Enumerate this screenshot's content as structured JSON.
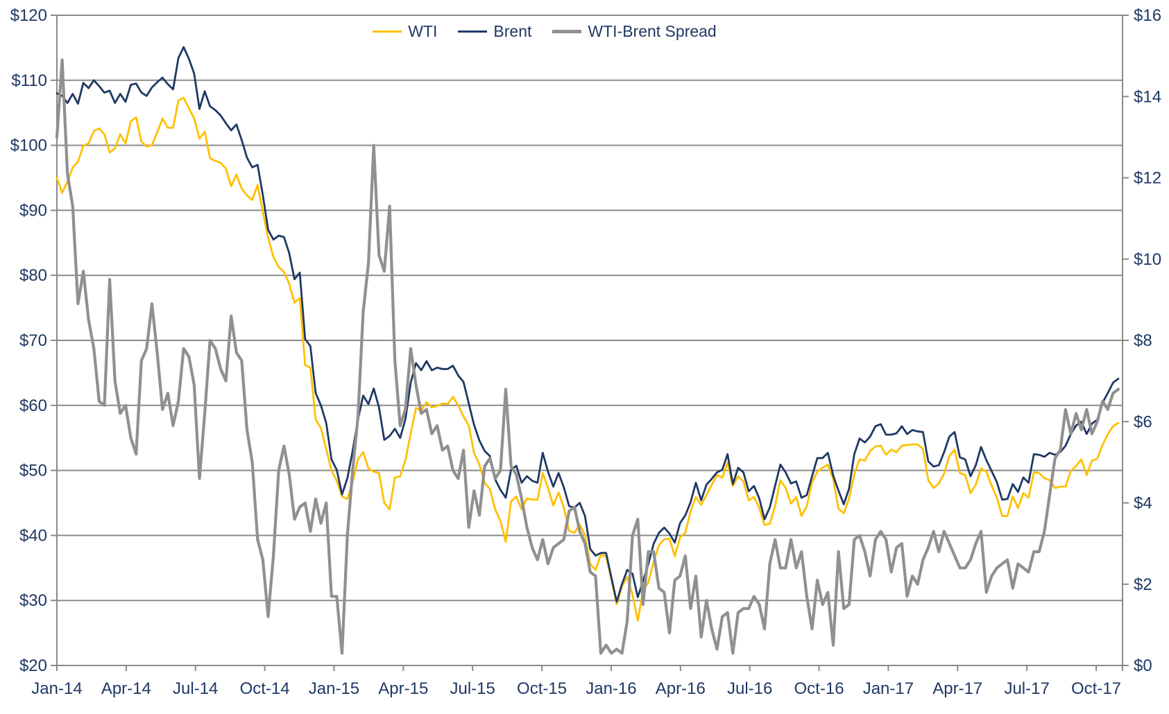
{
  "chart_data": {
    "type": "line",
    "sampling": "weekly, Jan-2014 through mid-Nov-2017",
    "grid": true,
    "legend_position": "top-center",
    "colors": {
      "labels": "#1F3864",
      "grid": "#8A8A8A",
      "axis": "#8A8A8A",
      "background": "#FFFFFF"
    },
    "x_axis": {
      "tick_labels": [
        "Jan-14",
        "Apr-14",
        "Jul-14",
        "Oct-14",
        "Jan-15",
        "Apr-15",
        "Jul-15",
        "Oct-15",
        "Jan-16",
        "Apr-16",
        "Jul-16",
        "Oct-16",
        "Jan-17",
        "Apr-17",
        "Jul-17",
        "Oct-17"
      ]
    },
    "y_axis_left": {
      "min": 20,
      "max": 120,
      "step": 10,
      "tick_values": [
        20,
        30,
        40,
        50,
        60,
        70,
        80,
        90,
        100,
        110,
        120
      ],
      "tick_labels": [
        "$20",
        "$30",
        "$40",
        "$50",
        "$60",
        "$70",
        "$80",
        "$90",
        "$100",
        "$110",
        "$120"
      ]
    },
    "y_axis_right": {
      "min": 0,
      "max": 16,
      "step": 2,
      "tick_values": [
        0,
        2,
        4,
        6,
        8,
        10,
        12,
        14,
        16
      ],
      "tick_labels": [
        "$0",
        "$2",
        "$4",
        "$6",
        "$8",
        "$10",
        "$12",
        "$14",
        "$16"
      ]
    },
    "legend": [
      {
        "label": "WTI",
        "color": "#FFC000"
      },
      {
        "label": "Brent",
        "color": "#1F3864"
      },
      {
        "label": "WTI-Brent Spread",
        "color": "#909090"
      }
    ],
    "series": [
      {
        "name": "WTI",
        "axis": "left",
        "color": "#FFC000",
        "stroke_width": 2.8,
        "values": [
          95.0,
          92.7,
          94.4,
          96.6,
          97.5,
          99.9,
          100.3,
          102.2,
          102.6,
          101.7,
          98.9,
          99.5,
          101.7,
          100.3,
          103.7,
          104.3,
          100.6,
          99.8,
          100.0,
          102.0,
          104.1,
          102.7,
          102.7,
          106.9,
          107.3,
          105.7,
          104.1,
          101.0,
          102.1,
          98.0,
          97.6,
          97.3,
          96.4,
          93.7,
          95.5,
          93.3,
          92.3,
          91.6,
          93.9,
          89.7,
          85.8,
          82.8,
          81.3,
          80.5,
          78.7,
          75.8,
          76.5,
          66.2,
          65.8,
          57.8,
          56.5,
          53.3,
          50.0,
          48.4,
          46.0,
          45.6,
          48.2,
          51.7,
          52.8,
          50.3,
          49.8,
          49.6,
          45.0,
          44.0,
          48.9,
          49.1,
          51.6,
          55.7,
          59.6,
          59.2,
          60.5,
          59.7,
          59.9,
          60.3,
          60.2,
          61.3,
          60.0,
          58.3,
          56.9,
          52.7,
          50.9,
          48.1,
          47.1,
          44.0,
          42.2,
          39.0,
          45.2,
          46.0,
          44.0,
          45.7,
          45.5,
          45.5,
          49.6,
          47.3,
          44.6,
          46.6,
          44.3,
          40.7,
          40.4,
          41.7,
          40.0,
          35.6,
          34.7,
          37.0,
          36.8,
          33.2,
          29.4,
          32.2,
          33.6,
          30.9,
          26.9,
          31.5,
          32.8,
          35.9,
          38.5,
          39.4,
          39.5,
          36.8,
          39.7,
          40.4,
          43.7,
          45.9,
          44.7,
          46.2,
          47.8,
          49.3,
          48.9,
          51.2,
          47.6,
          49.1,
          48.3,
          45.4,
          45.9,
          44.2,
          41.6,
          41.8,
          44.5,
          48.5,
          47.3,
          44.9,
          45.9,
          43.0,
          44.5,
          48.2,
          49.8,
          50.4,
          50.9,
          48.7,
          44.1,
          43.4,
          45.7,
          49.4,
          51.7,
          51.5,
          53.0,
          53.7,
          53.8,
          52.4,
          53.2,
          52.8,
          53.8,
          53.9,
          54.0,
          54.0,
          53.3,
          48.5,
          47.3,
          48.0,
          49.5,
          52.2,
          53.2,
          49.6,
          49.3,
          46.5,
          47.8,
          50.3,
          49.8,
          47.7,
          45.8,
          43.0,
          43.0,
          46.0,
          44.2,
          46.5,
          45.8,
          49.7,
          49.6,
          48.8,
          48.5,
          47.3,
          47.5,
          47.5,
          49.9,
          50.7,
          51.7,
          49.3,
          51.5,
          51.8,
          53.9,
          55.6,
          56.8,
          57.3
        ]
      },
      {
        "name": "Brent",
        "axis": "left",
        "color": "#1F3864",
        "stroke_width": 2.8,
        "values": [
          108.0,
          107.6,
          106.5,
          107.9,
          106.4,
          109.6,
          108.8,
          110.0,
          109.1,
          108.1,
          108.4,
          106.5,
          107.9,
          106.7,
          109.3,
          109.5,
          108.1,
          107.6,
          108.9,
          109.7,
          110.4,
          109.4,
          108.6,
          113.4,
          115.1,
          113.3,
          111.0,
          105.6,
          108.3,
          106.0,
          105.4,
          104.6,
          103.4,
          102.3,
          103.2,
          100.8,
          98.1,
          96.6,
          97.0,
          92.3,
          87.0,
          85.5,
          86.1,
          85.9,
          83.4,
          79.4,
          80.4,
          70.2,
          69.1,
          61.9,
          60.0,
          57.3,
          51.7,
          50.1,
          46.3,
          48.8,
          53.0,
          57.8,
          61.5,
          60.2,
          62.6,
          59.7,
          54.7,
          55.3,
          56.4,
          55.0,
          57.9,
          63.5,
          66.5,
          65.4,
          66.8,
          65.4,
          65.8,
          65.6,
          65.6,
          66.1,
          64.6,
          63.6,
          60.3,
          57.0,
          54.6,
          53.0,
          52.2,
          48.6,
          47.0,
          45.8,
          50.1,
          50.7,
          48.1,
          49.1,
          48.4,
          48.1,
          52.7,
          49.8,
          47.5,
          49.6,
          47.4,
          44.5,
          44.3,
          45.0,
          43.0,
          37.9,
          36.9,
          37.3,
          37.3,
          33.5,
          29.8,
          32.5,
          34.7,
          34.1,
          30.5,
          33.0,
          35.6,
          38.7,
          40.4,
          41.2,
          40.3,
          38.9,
          41.9,
          43.1,
          45.1,
          48.1,
          45.4,
          47.8,
          48.7,
          49.7,
          50.1,
          52.5,
          47.9,
          50.4,
          49.7,
          46.8,
          47.6,
          45.7,
          42.5,
          44.3,
          47.6,
          50.9,
          49.7,
          48.0,
          48.3,
          45.8,
          46.2,
          49.1,
          51.9,
          51.9,
          52.7,
          49.2,
          46.9,
          44.8,
          47.2,
          52.5,
          54.9,
          54.3,
          55.2,
          56.8,
          57.1,
          55.5,
          55.5,
          55.7,
          56.8,
          55.6,
          56.2,
          56.0,
          55.9,
          51.4,
          50.6,
          50.8,
          52.8,
          55.2,
          55.9,
          52.0,
          51.7,
          49.1,
          50.8,
          53.6,
          51.6,
          49.9,
          48.2,
          45.5,
          45.6,
          47.9,
          46.7,
          48.9,
          48.1,
          52.5,
          52.4,
          52.1,
          52.7,
          52.4,
          52.8,
          53.8,
          55.6,
          56.9,
          57.5,
          55.6,
          57.2,
          57.8,
          60.4,
          61.9,
          63.5,
          64.1
        ]
      },
      {
        "name": "WTI-Brent Spread",
        "axis": "right",
        "color": "#909090",
        "stroke_width": 4.2,
        "values": [
          13.0,
          14.9,
          12.1,
          11.3,
          8.9,
          9.7,
          8.5,
          7.8,
          6.5,
          6.4,
          9.5,
          7.0,
          6.2,
          6.4,
          5.6,
          5.2,
          7.5,
          7.8,
          8.9,
          7.7,
          6.3,
          6.7,
          5.9,
          6.5,
          7.8,
          7.6,
          6.9,
          4.6,
          6.2,
          8.0,
          7.8,
          7.3,
          7.0,
          8.6,
          7.7,
          7.5,
          5.8,
          5.0,
          3.1,
          2.6,
          1.2,
          2.7,
          4.8,
          5.4,
          4.7,
          3.6,
          3.9,
          4.0,
          3.3,
          4.1,
          3.5,
          4.0,
          1.7,
          1.7,
          0.3,
          3.2,
          4.8,
          6.1,
          8.7,
          9.9,
          12.8,
          10.1,
          9.7,
          11.3,
          7.5,
          5.9,
          6.3,
          7.8,
          6.9,
          6.2,
          6.3,
          5.7,
          5.9,
          5.3,
          5.4,
          4.8,
          4.6,
          5.3,
          3.4,
          4.3,
          3.7,
          4.9,
          5.1,
          4.6,
          4.8,
          6.8,
          4.9,
          4.7,
          4.1,
          3.4,
          2.9,
          2.6,
          3.1,
          2.5,
          2.9,
          3.0,
          3.1,
          3.8,
          3.9,
          3.3,
          3.0,
          2.3,
          2.2,
          0.3,
          0.5,
          0.3,
          0.4,
          0.3,
          1.1,
          3.2,
          3.6,
          1.5,
          2.8,
          2.8,
          1.9,
          1.8,
          0.8,
          2.1,
          2.2,
          2.7,
          1.4,
          2.2,
          0.7,
          1.6,
          0.9,
          0.4,
          1.2,
          1.3,
          0.3,
          1.3,
          1.4,
          1.4,
          1.7,
          1.5,
          0.9,
          2.5,
          3.1,
          2.4,
          2.4,
          3.1,
          2.4,
          2.8,
          1.7,
          0.9,
          2.1,
          1.5,
          1.8,
          0.5,
          2.8,
          1.4,
          1.5,
          3.1,
          3.2,
          2.8,
          2.2,
          3.1,
          3.3,
          3.1,
          2.3,
          2.9,
          3.0,
          1.7,
          2.2,
          2.0,
          2.6,
          2.9,
          3.3,
          2.8,
          3.3,
          3.0,
          2.7,
          2.4,
          2.4,
          2.6,
          3.0,
          3.3,
          1.8,
          2.2,
          2.4,
          2.5,
          2.6,
          1.9,
          2.5,
          2.4,
          2.3,
          2.8,
          2.8,
          3.3,
          4.2,
          5.1,
          5.3,
          6.3,
          5.7,
          6.2,
          5.8,
          6.3,
          5.7,
          6.0,
          6.5,
          6.3,
          6.7,
          6.8
        ]
      }
    ]
  }
}
